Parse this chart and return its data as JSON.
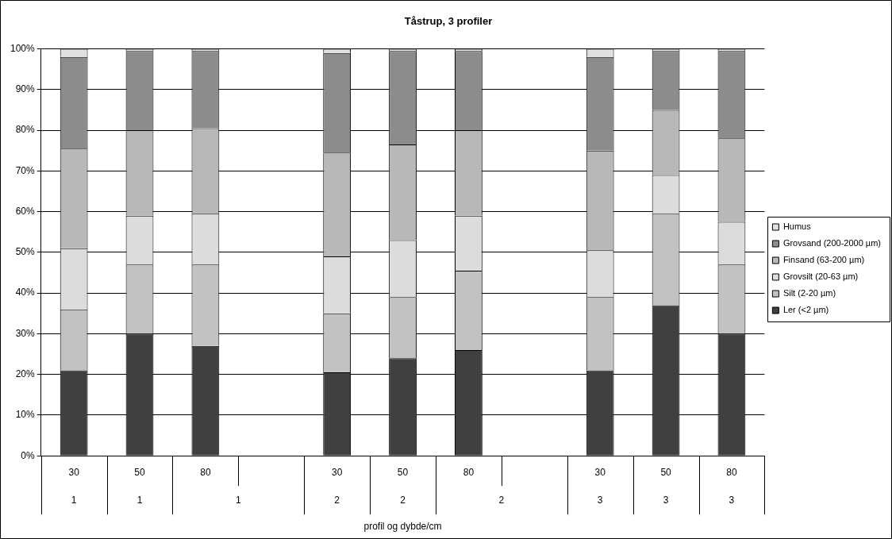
{
  "chart_data": {
    "type": "bar",
    "title": "Tåstrup, 3 profiler",
    "xlabel": "profil og dybde/cm",
    "categories": [
      "30",
      "50",
      "80",
      null,
      "30",
      "50",
      "80",
      null,
      "30",
      "50",
      "80"
    ],
    "stacked": true,
    "series": [
      {
        "name": "Ler (<2 µm)",
        "color": "#404040",
        "values": [
          21,
          30,
          27,
          null,
          20.5,
          24,
          26,
          null,
          21,
          37,
          30
        ]
      },
      {
        "name": "Silt (2-20 µm)",
        "color": "#c2c2c2",
        "values": [
          15,
          17,
          20,
          null,
          14.5,
          15,
          19.5,
          null,
          18,
          22.5,
          17
        ]
      },
      {
        "name": "Grovsilt (20-63 µm)",
        "color": "#dcdcdc",
        "values": [
          15,
          12,
          12.5,
          null,
          14,
          14,
          13.5,
          null,
          11.5,
          9.5,
          10.5
        ]
      },
      {
        "name": "Finsand (63-200 µm)",
        "color": "#b8b8b8",
        "values": [
          24.5,
          21,
          21,
          null,
          25.5,
          23.5,
          21,
          null,
          24.5,
          16,
          20.5
        ]
      },
      {
        "name": "Grovsand (200-2000 µm)",
        "color": "#8c8c8c",
        "values": [
          22.5,
          19.5,
          19,
          null,
          24.5,
          23,
          19.5,
          null,
          23,
          14.5,
          21.5
        ]
      },
      {
        "name": "Humus",
        "color": "#e0e0e0",
        "values": [
          2,
          0.5,
          0.5,
          null,
          1,
          0.5,
          0.5,
          null,
          2,
          0.5,
          0.5
        ]
      }
    ],
    "ylim": [
      0,
      100
    ],
    "yticks": [
      {
        "value": 0,
        "label": "0%"
      },
      {
        "value": 10,
        "label": "10%"
      },
      {
        "value": 20,
        "label": "20%"
      },
      {
        "value": 30,
        "label": "30%"
      },
      {
        "value": 40,
        "label": "40%"
      },
      {
        "value": 50,
        "label": "50%"
      },
      {
        "value": 60,
        "label": "60%"
      },
      {
        "value": 70,
        "label": "70%"
      },
      {
        "value": 80,
        "label": "80%"
      },
      {
        "value": 90,
        "label": "90%"
      },
      {
        "value": 100,
        "label": "100%"
      }
    ],
    "grid": "y",
    "legend": "right",
    "annotations": [
      "1",
      "1",
      "1",
      "2",
      "2",
      "2",
      "3",
      "3",
      "3"
    ]
  }
}
